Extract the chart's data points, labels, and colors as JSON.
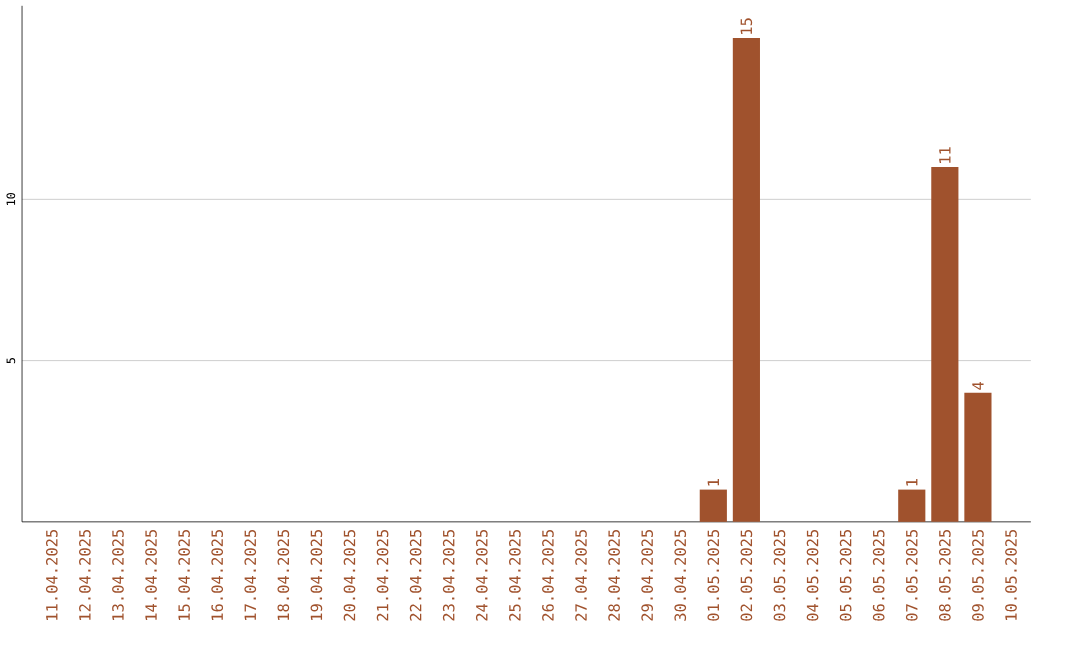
{
  "chart_data": {
    "type": "bar",
    "categories": [
      "11.04.2025",
      "12.04.2025",
      "13.04.2025",
      "14.04.2025",
      "15.04.2025",
      "16.04.2025",
      "17.04.2025",
      "18.04.2025",
      "19.04.2025",
      "20.04.2025",
      "21.04.2025",
      "22.04.2025",
      "23.04.2025",
      "24.04.2025",
      "25.04.2025",
      "26.04.2025",
      "27.04.2025",
      "28.04.2025",
      "29.04.2025",
      "30.04.2025",
      "01.05.2025",
      "02.05.2025",
      "03.05.2025",
      "04.05.2025",
      "05.05.2025",
      "06.05.2025",
      "07.05.2025",
      "08.05.2025",
      "09.05.2025",
      "10.05.2025"
    ],
    "values": [
      0,
      0,
      0,
      0,
      0,
      0,
      0,
      0,
      0,
      0,
      0,
      0,
      0,
      0,
      0,
      0,
      0,
      0,
      0,
      0,
      1,
      15,
      0,
      0,
      0,
      0,
      1,
      11,
      4,
      0
    ],
    "value_labels": [
      null,
      null,
      null,
      null,
      null,
      null,
      null,
      null,
      null,
      null,
      null,
      null,
      null,
      null,
      null,
      null,
      null,
      null,
      null,
      null,
      "1",
      "15",
      null,
      null,
      null,
      null,
      "1",
      "11",
      "4",
      null
    ],
    "color": "#a0522d",
    "ylim": [
      0,
      16
    ],
    "yticks": [
      5,
      10
    ],
    "grid": "y"
  }
}
